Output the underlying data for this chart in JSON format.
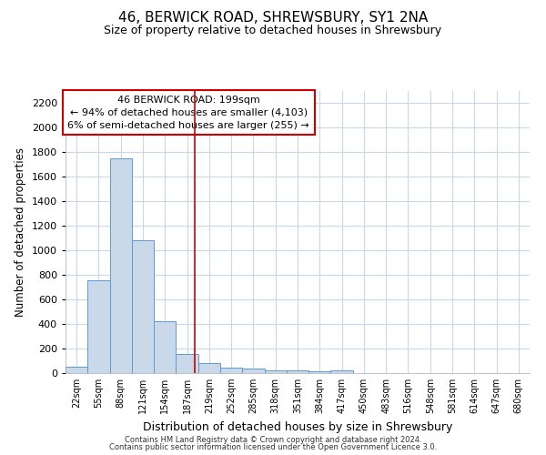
{
  "title": "46, BERWICK ROAD, SHREWSBURY, SY1 2NA",
  "subtitle": "Size of property relative to detached houses in Shrewsbury",
  "xlabel": "Distribution of detached houses by size in Shrewsbury",
  "ylabel": "Number of detached properties",
  "bin_labels": [
    "22sqm",
    "55sqm",
    "88sqm",
    "121sqm",
    "154sqm",
    "187sqm",
    "219sqm",
    "252sqm",
    "285sqm",
    "318sqm",
    "351sqm",
    "384sqm",
    "417sqm",
    "450sqm",
    "483sqm",
    "516sqm",
    "548sqm",
    "581sqm",
    "614sqm",
    "647sqm",
    "680sqm"
  ],
  "bar_values": [
    55,
    760,
    1750,
    1080,
    425,
    155,
    80,
    45,
    35,
    25,
    20,
    15,
    20,
    0,
    0,
    0,
    0,
    0,
    0,
    0,
    0
  ],
  "bar_color": "#c9d9ea",
  "bar_edge_color": "#5b9bd5",
  "grid_color": "#c8d8e8",
  "background_color": "#ffffff",
  "outer_background": "#ffffff",
  "red_line_color": "#cc0000",
  "annotation_line1": "46 BERWICK ROAD: 199sqm",
  "annotation_line2": "← 94% of detached houses are smaller (4,103)",
  "annotation_line3": "6% of semi-detached houses are larger (255) →",
  "ylim": [
    0,
    2300
  ],
  "yticks": [
    0,
    200,
    400,
    600,
    800,
    1000,
    1200,
    1400,
    1600,
    1800,
    2000,
    2200
  ],
  "footer_line1": "Contains HM Land Registry data © Crown copyright and database right 2024.",
  "footer_line2": "Contains public sector information licensed under the Open Government Licence 3.0."
}
